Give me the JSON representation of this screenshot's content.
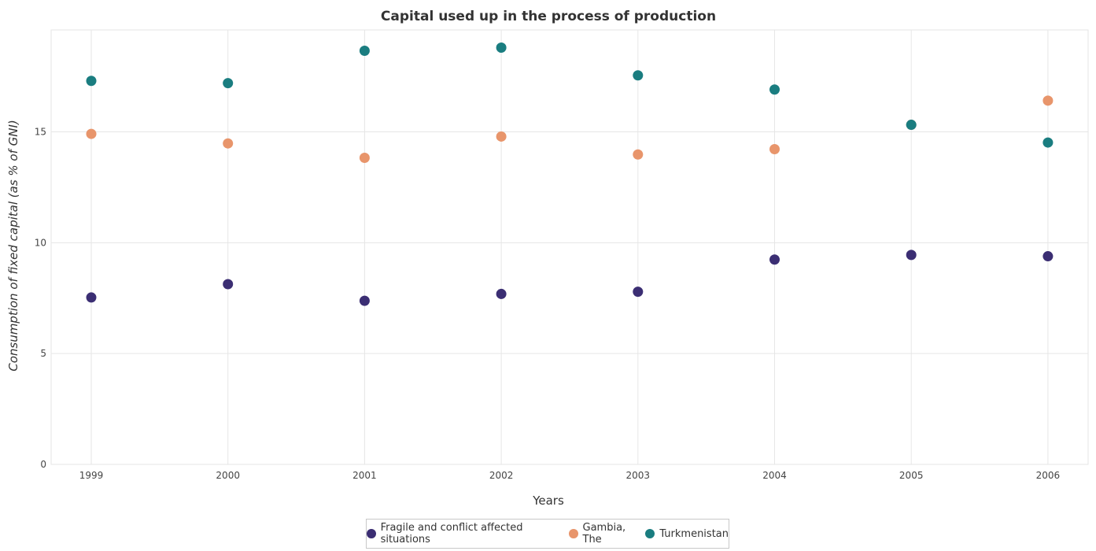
{
  "chart_data": {
    "type": "scatter",
    "title": "Capital used up in the process of production",
    "xlabel": "Years",
    "ylabel": "Consumption of fixed capital (as % of GNI)",
    "categories": [
      "1999",
      "2000",
      "2001",
      "2002",
      "2003",
      "2004",
      "2005",
      "2006"
    ],
    "ylim": [
      0,
      19.6
    ],
    "yticks": [
      0,
      5,
      10,
      15
    ],
    "grid": true,
    "legend_position": "bottom-center",
    "series": [
      {
        "name": "Fragile and conflict affected situations",
        "color": "#3b2e73",
        "values": [
          7.53,
          8.13,
          7.38,
          7.69,
          7.79,
          9.24,
          9.45,
          9.39
        ]
      },
      {
        "name": "Gambia, The",
        "color": "#e8956b",
        "values": [
          14.91,
          14.48,
          13.83,
          14.79,
          13.98,
          14.22,
          15.32,
          16.41
        ]
      },
      {
        "name": "Turkmenistan",
        "color": "#1a7d80",
        "values": [
          17.3,
          17.2,
          18.66,
          18.8,
          17.55,
          16.91,
          15.32,
          14.52
        ]
      }
    ]
  }
}
